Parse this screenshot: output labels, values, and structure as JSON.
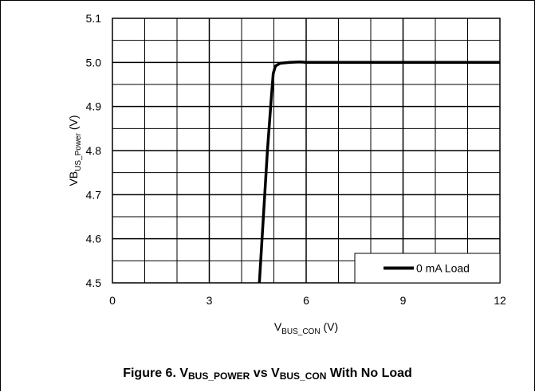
{
  "chart_data": {
    "type": "line",
    "xlabel": {
      "main": "V",
      "sub": "BUS_CON",
      "unit": " (V)"
    },
    "ylabel": {
      "main": "VB",
      "sub": "US_Power",
      "unit": " (V)"
    },
    "xlim": [
      0,
      12
    ],
    "ylim": [
      4.5,
      5.1
    ],
    "x_ticks": [
      "0",
      "3",
      "6",
      "9",
      "12"
    ],
    "y_ticks": [
      "4.5",
      "4.6",
      "4.7",
      "4.8",
      "4.9",
      "5.0",
      "5.1"
    ],
    "x_tick_values": [
      0,
      3,
      6,
      9,
      12
    ],
    "y_tick_values": [
      4.5,
      4.6,
      4.7,
      4.8,
      4.9,
      5.0,
      5.1
    ],
    "grid": true,
    "legend_position": "bottom-right",
    "series": [
      {
        "name": "0 mA Load",
        "color": "#000000",
        "x": [
          4.55,
          4.8,
          4.92,
          4.98,
          5.05,
          5.2,
          5.5,
          5.8,
          6.0,
          12.0
        ],
        "y": [
          4.5,
          4.8,
          4.92,
          4.975,
          4.992,
          4.998,
          5.0,
          5.001,
          5.0,
          5.0
        ]
      }
    ]
  },
  "caption": {
    "prefix": "Figure 6. V",
    "sub1": "BUS_POWER",
    "middle": " vs V",
    "sub2": "BUS_CON",
    "suffix": " With No Load"
  }
}
